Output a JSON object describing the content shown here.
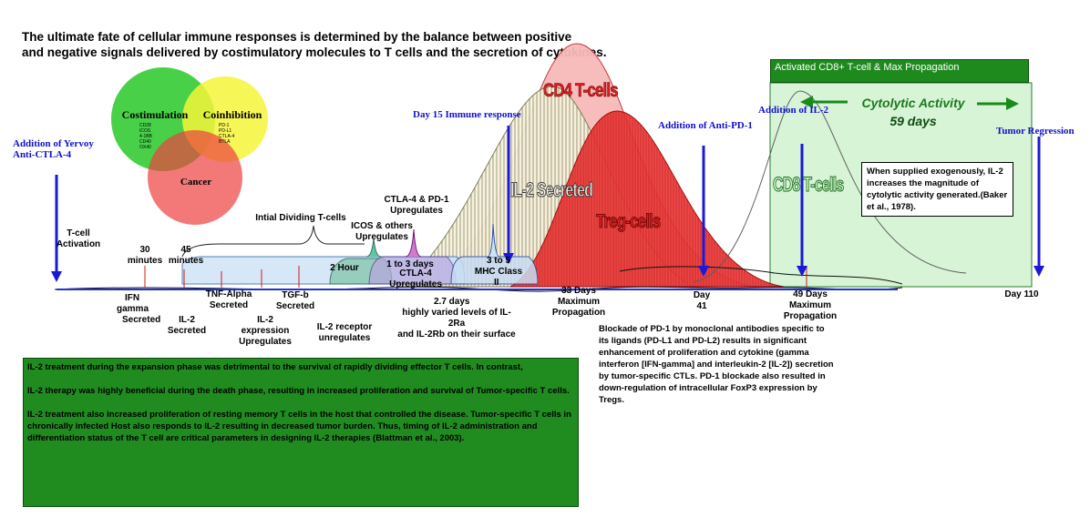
{
  "title": {
    "line1": "The ultimate fate of cellular immune responses is determined by the balance between positive",
    "line2": "and negative signals delivered by costimulatory molecules to T cells and the secretion of cytokines."
  },
  "venn": {
    "costimulation": "Costimulation",
    "coinhibition": "Coinhibition",
    "cancer": "Cancer",
    "costim_items": [
      "CD28",
      "ICOS",
      "4-1BB",
      "CD40",
      "OX40"
    ],
    "coinhib_items": [
      "PD-1",
      "PD-L1",
      "CTLA-4",
      "BTLA"
    ],
    "colors": {
      "green": "#3ecf3e",
      "yellow": "#f4f43a",
      "red": "#ee4040"
    }
  },
  "blue_labels": {
    "yervoy": [
      "Addition of Yervoy",
      "Anti-CTLA-4"
    ],
    "day15": "Day 15 Immune response",
    "anti_pd1": "Addition of Anti-PD-1",
    "il2": "Addition of IL-2",
    "tumor": "Tumor Regression"
  },
  "timeline_labels": {
    "tcell_activation": [
      "T-cell",
      "Activation"
    ],
    "min30": [
      "30",
      "minutes"
    ],
    "min45": [
      "45",
      "minutes"
    ],
    "initial_dividing": "Intial Dividing T-cells",
    "icos": [
      "ICOS & others",
      "Upregulates"
    ],
    "ctla4_pd1": [
      "CTLA-4 & PD-1",
      "Upregulates"
    ],
    "two_hour": "2 Hour",
    "one_to_three": "1 to 3 days",
    "ctla4_up": [
      "CTLA-4",
      "Upregulates"
    ],
    "three_to_five": [
      "3 to 5",
      "MHC Class",
      "II"
    ],
    "ifn": [
      "IFN",
      "gamma",
      "Secreted"
    ],
    "il2_secreted": [
      "IL-2",
      "Secreted"
    ],
    "tnf": [
      "TNF-Alpha",
      "Secreted"
    ],
    "il2_expr": [
      "IL-2",
      "expression",
      "Upregulates"
    ],
    "tgf": [
      "TGF-b",
      "Secreted"
    ],
    "il2_receptor": [
      "IL-2  receptor",
      "unregulates"
    ],
    "days27": [
      "2.7 days",
      "highly varied levels of IL-2Ra",
      "and IL-2Rb on their surface"
    ],
    "days33": [
      "33 Days",
      "Maximum",
      "Propagation"
    ],
    "day41": [
      "Day",
      "41"
    ],
    "days49": [
      "49 Days",
      "Maximum",
      "Propagation"
    ],
    "day110": "Day 110"
  },
  "curves": {
    "cd4": "CD4 T-cells",
    "il2": "IL-2 Secreted",
    "treg": "Treg-cells",
    "cd8": "CD8 T-cells"
  },
  "panel": {
    "header": "Activated CD8+ T-cell & Max Propagation",
    "cytolytic_line1": "Cytolytic Activity",
    "cytolytic_line2": "59 days"
  },
  "quote_box": "When supplied exogenously, IL-2 increases the magnitude of cytolytic activity generated.(Baker et al., 1978).",
  "pd1_text": "Blockade of PD-1 by monoclonal antibodies specific to its ligands (PD-L1 and PD-L2) results in significant enhancement of proliferation and cytokine (gamma interferon [IFN-gamma] and interleukin-2 [IL-2]) secretion by tumor-specific CTLs. PD-1 blockade also resulted in down-regulation of intracellular FoxP3 expression by Tregs.",
  "green_box": [
    "IL-2 treatment during the expansion phase was detrimental to the survival of rapidly dividing effector T cells. In contrast,",
    "IL-2 therapy was highly beneficial during the death phase, resulting in increased proliferation and survival of Tumor-specific T cells.",
    "IL-2 treatment also increased proliferation of resting memory T cells in the host that controlled the disease. Tumor-specific T cells in chronically infected Host also responds to IL-2 resulting in decreased tumor burden. Thus, timing of IL-2 administration and differentiation status of the T cell are critical parameters in designing IL-2 therapies (Blattman et al., 2003)."
  ]
}
